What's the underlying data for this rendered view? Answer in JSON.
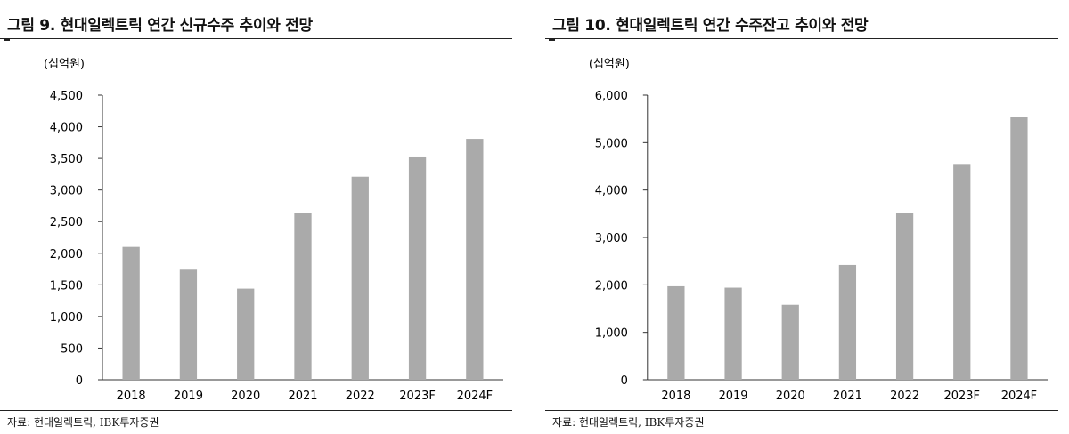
{
  "chart_data": [
    {
      "type": "bar",
      "title": "그림 9. 현대일렉트릭 연간 신규수주 추이와 전망",
      "unit": "(십억원)",
      "categories": [
        "2018",
        "2019",
        "2020",
        "2021",
        "2022",
        "2023F",
        "2024F"
      ],
      "values": [
        2100,
        1740,
        1440,
        2640,
        3210,
        3530,
        3810
      ],
      "ylim": [
        0,
        4500
      ],
      "yticks": [
        "0",
        "500",
        "1,000",
        "1,500",
        "2,000",
        "2,500",
        "3,000",
        "3,500",
        "4,000",
        "4,500"
      ],
      "ytick_values": [
        0,
        500,
        1000,
        1500,
        2000,
        2500,
        3000,
        3500,
        4000,
        4500
      ],
      "bar_color": "#aaaaaa",
      "grid": false,
      "source": "자료: 현대일렉트릭, IBK투자증권"
    },
    {
      "type": "bar",
      "title": "그림 10. 현대일렉트릭 연간 수주잔고 추이와 전망",
      "unit": "(십억원)",
      "categories": [
        "2018",
        "2019",
        "2020",
        "2021",
        "2022",
        "2023F",
        "2024F"
      ],
      "values": [
        1970,
        1940,
        1580,
        2420,
        3520,
        4550,
        5540
      ],
      "ylim": [
        0,
        6000
      ],
      "yticks": [
        "0",
        "1,000",
        "2,000",
        "3,000",
        "4,000",
        "5,000",
        "6,000"
      ],
      "ytick_values": [
        0,
        1000,
        2000,
        3000,
        4000,
        5000,
        6000
      ],
      "bar_color": "#aaaaaa",
      "grid": false,
      "source": "자료: 현대일렉트릭, IBK투자증권"
    }
  ]
}
